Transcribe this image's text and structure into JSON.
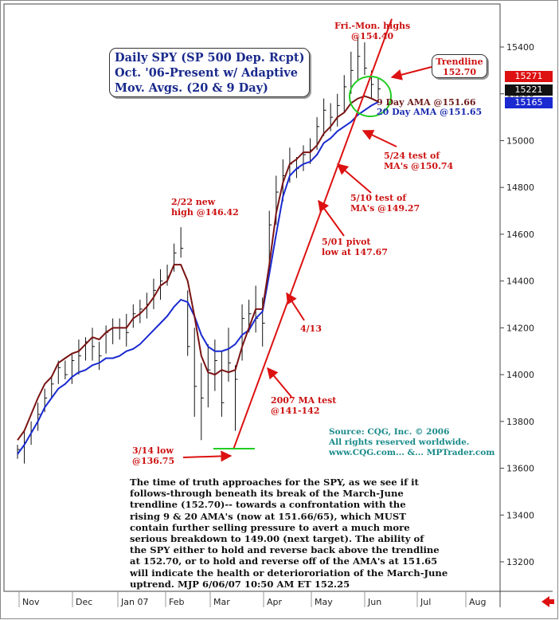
{
  "title_lines": [
    "Daily SPY (SP 500 Dep. Rcpt)",
    "Oct. '06-Present w/ Adaptive",
    "Mov. Avgs. (20 & 9 Day)"
  ],
  "trendline_box": [
    "Trendline",
    "152.70"
  ],
  "annotations": {
    "highs": [
      "Fri.-Mon. highs",
      "@154.40"
    ],
    "feb22": [
      "2/22 new",
      "high @146.42"
    ],
    "mar14": [
      "3/14 low",
      "@136.75"
    ],
    "ma2007": [
      "2007 MA test",
      "@141-142"
    ],
    "apr13": [
      "4/13"
    ],
    "may01": [
      "5/01 pivot",
      "low at 147.67"
    ],
    "may10": [
      "5/10 test of",
      "MA's @149.27"
    ],
    "may24": [
      "5/24 test of",
      "MA's @150.74"
    ],
    "ama9": [
      "9 Day AMA @151.66"
    ],
    "ama20": [
      "20 Day AMA @151.65"
    ]
  },
  "source_lines": [
    "Source: CQG, Inc. © 2006",
    "All rights reserved worldwide.",
    "www.CQG.com... &... MPTrader.com"
  ],
  "body_lines": [
    "The time of truth approaches for the SPY, as we see if it",
    "follows-through beneath its break of the March-June",
    "trendline (152.70)-- towards a confrontation with the",
    "rising 9 & 20 AMA's (now at 151.66/65), which MUST",
    "contain further selling pressure to avert a much more",
    "serious breakdown to 149.00 (next target). The ability of",
    "the SPY either to hold and reverse back above the trendline",
    "at 152.70, or to hold and reverse off of the AMA's at 151.65",
    "will indicate the health or deteriororiation of the March-June",
    "uptrend.  MJP 6/06/07  10:50 AM ET  152.25"
  ],
  "price_tags": [
    {
      "label": "15271",
      "color": "#dd1111"
    },
    {
      "label": "15221",
      "color": "#111111"
    },
    {
      "label": "15165",
      "color": "#1a2ad0"
    }
  ],
  "colors": {
    "ama9": "#7a1414",
    "ama20": "#1a2ad0",
    "trendline": "#dd1111",
    "bars": "#111111",
    "circle": "#22cc22"
  },
  "chart_data": {
    "type": "line",
    "x_tick_labels": [
      "Nov",
      "Dec",
      "Jan 07",
      "Feb",
      "Mar",
      "Apr",
      "May",
      "Jun",
      "Jul",
      "Aug"
    ],
    "y_tick_labels": [
      13200,
      13400,
      13600,
      13800,
      14000,
      14200,
      14400,
      14600,
      14800,
      15000,
      15200,
      15400
    ],
    "ylim": [
      13150,
      15550
    ],
    "series": [
      {
        "name": "9 Day AMA",
        "values": [
          13720,
          13760,
          13830,
          13900,
          13960,
          13990,
          14050,
          14070,
          14090,
          14100,
          14130,
          14160,
          14150,
          14180,
          14200,
          14200,
          14200,
          14240,
          14260,
          14290,
          14330,
          14380,
          14400,
          14470,
          14470,
          14400,
          14250,
          14080,
          14010,
          14000,
          14020,
          14010,
          14020,
          14120,
          14200,
          14280,
          14280,
          14470,
          14690,
          14820,
          14900,
          14920,
          14950,
          14950,
          14980,
          15030,
          15060,
          15100,
          15120,
          15160,
          15180,
          15190,
          15180,
          15166
        ]
      },
      {
        "name": "20 Day AMA",
        "values": [
          13660,
          13700,
          13750,
          13800,
          13860,
          13900,
          13940,
          13960,
          13990,
          14010,
          14020,
          14040,
          14050,
          14070,
          14070,
          14080,
          14100,
          14110,
          14130,
          14160,
          14190,
          14220,
          14250,
          14290,
          14320,
          14310,
          14250,
          14170,
          14120,
          14100,
          14100,
          14110,
          14130,
          14170,
          14190,
          14240,
          14270,
          14430,
          14600,
          14760,
          14850,
          14880,
          14900,
          14910,
          14940,
          14990,
          15010,
          15040,
          15060,
          15080,
          15110,
          15130,
          15150,
          15165
        ]
      },
      {
        "name": "Trendline",
        "values": [
          13680,
          15520
        ]
      }
    ],
    "bars": [
      [
        13700,
        13640,
        13680
      ],
      [
        13760,
        13620,
        13710
      ],
      [
        13800,
        13700,
        13760
      ],
      [
        13880,
        13760,
        13830
      ],
      [
        13940,
        13840,
        13900
      ],
      [
        13990,
        13900,
        13960
      ],
      [
        14060,
        13960,
        14030
      ],
      [
        14060,
        13980,
        14000
      ],
      [
        14090,
        13960,
        14060
      ],
      [
        14150,
        14000,
        14080
      ],
      [
        14160,
        14060,
        14140
      ],
      [
        14200,
        14060,
        14120
      ],
      [
        14140,
        14020,
        14080
      ],
      [
        14210,
        14090,
        14180
      ],
      [
        14240,
        14130,
        14200
      ],
      [
        14240,
        14150,
        14200
      ],
      [
        14260,
        14120,
        14180
      ],
      [
        14300,
        14200,
        14260
      ],
      [
        14320,
        14220,
        14280
      ],
      [
        14350,
        14240,
        14300
      ],
      [
        14410,
        14280,
        14360
      ],
      [
        14450,
        14320,
        14400
      ],
      [
        14470,
        14380,
        14420
      ],
      [
        14560,
        14440,
        14520
      ],
      [
        14630,
        14500,
        14540
      ],
      [
        14360,
        14080,
        14120
      ],
      [
        14200,
        13820,
        13950
      ],
      [
        14050,
        13720,
        13900
      ],
      [
        14130,
        13860,
        14020
      ],
      [
        14150,
        13930,
        14060
      ],
      [
        14100,
        13820,
        13880
      ],
      [
        14200,
        13970,
        14050
      ],
      [
        14040,
        13760,
        13980
      ],
      [
        14300,
        14060,
        14240
      ],
      [
        14320,
        14180,
        14260
      ],
      [
        14380,
        14180,
        14240
      ],
      [
        14330,
        14120,
        14220
      ],
      [
        14700,
        14450,
        14640
      ],
      [
        14850,
        14640,
        14780
      ],
      [
        14920,
        14740,
        14850
      ],
      [
        14970,
        14820,
        14900
      ],
      [
        14930,
        14840,
        14880
      ],
      [
        14980,
        14870,
        14940
      ],
      [
        15010,
        14900,
        14960
      ],
      [
        15100,
        14960,
        15060
      ],
      [
        15180,
        15020,
        15130
      ],
      [
        15160,
        15040,
        15100
      ],
      [
        15200,
        15060,
        15150
      ],
      [
        15280,
        15120,
        15230
      ],
      [
        15380,
        15200,
        15300
      ],
      [
        15440,
        15260,
        15360
      ],
      [
        15420,
        15280,
        15310
      ],
      [
        15300,
        15180,
        15240
      ],
      [
        15270,
        15180,
        15221
      ]
    ]
  }
}
